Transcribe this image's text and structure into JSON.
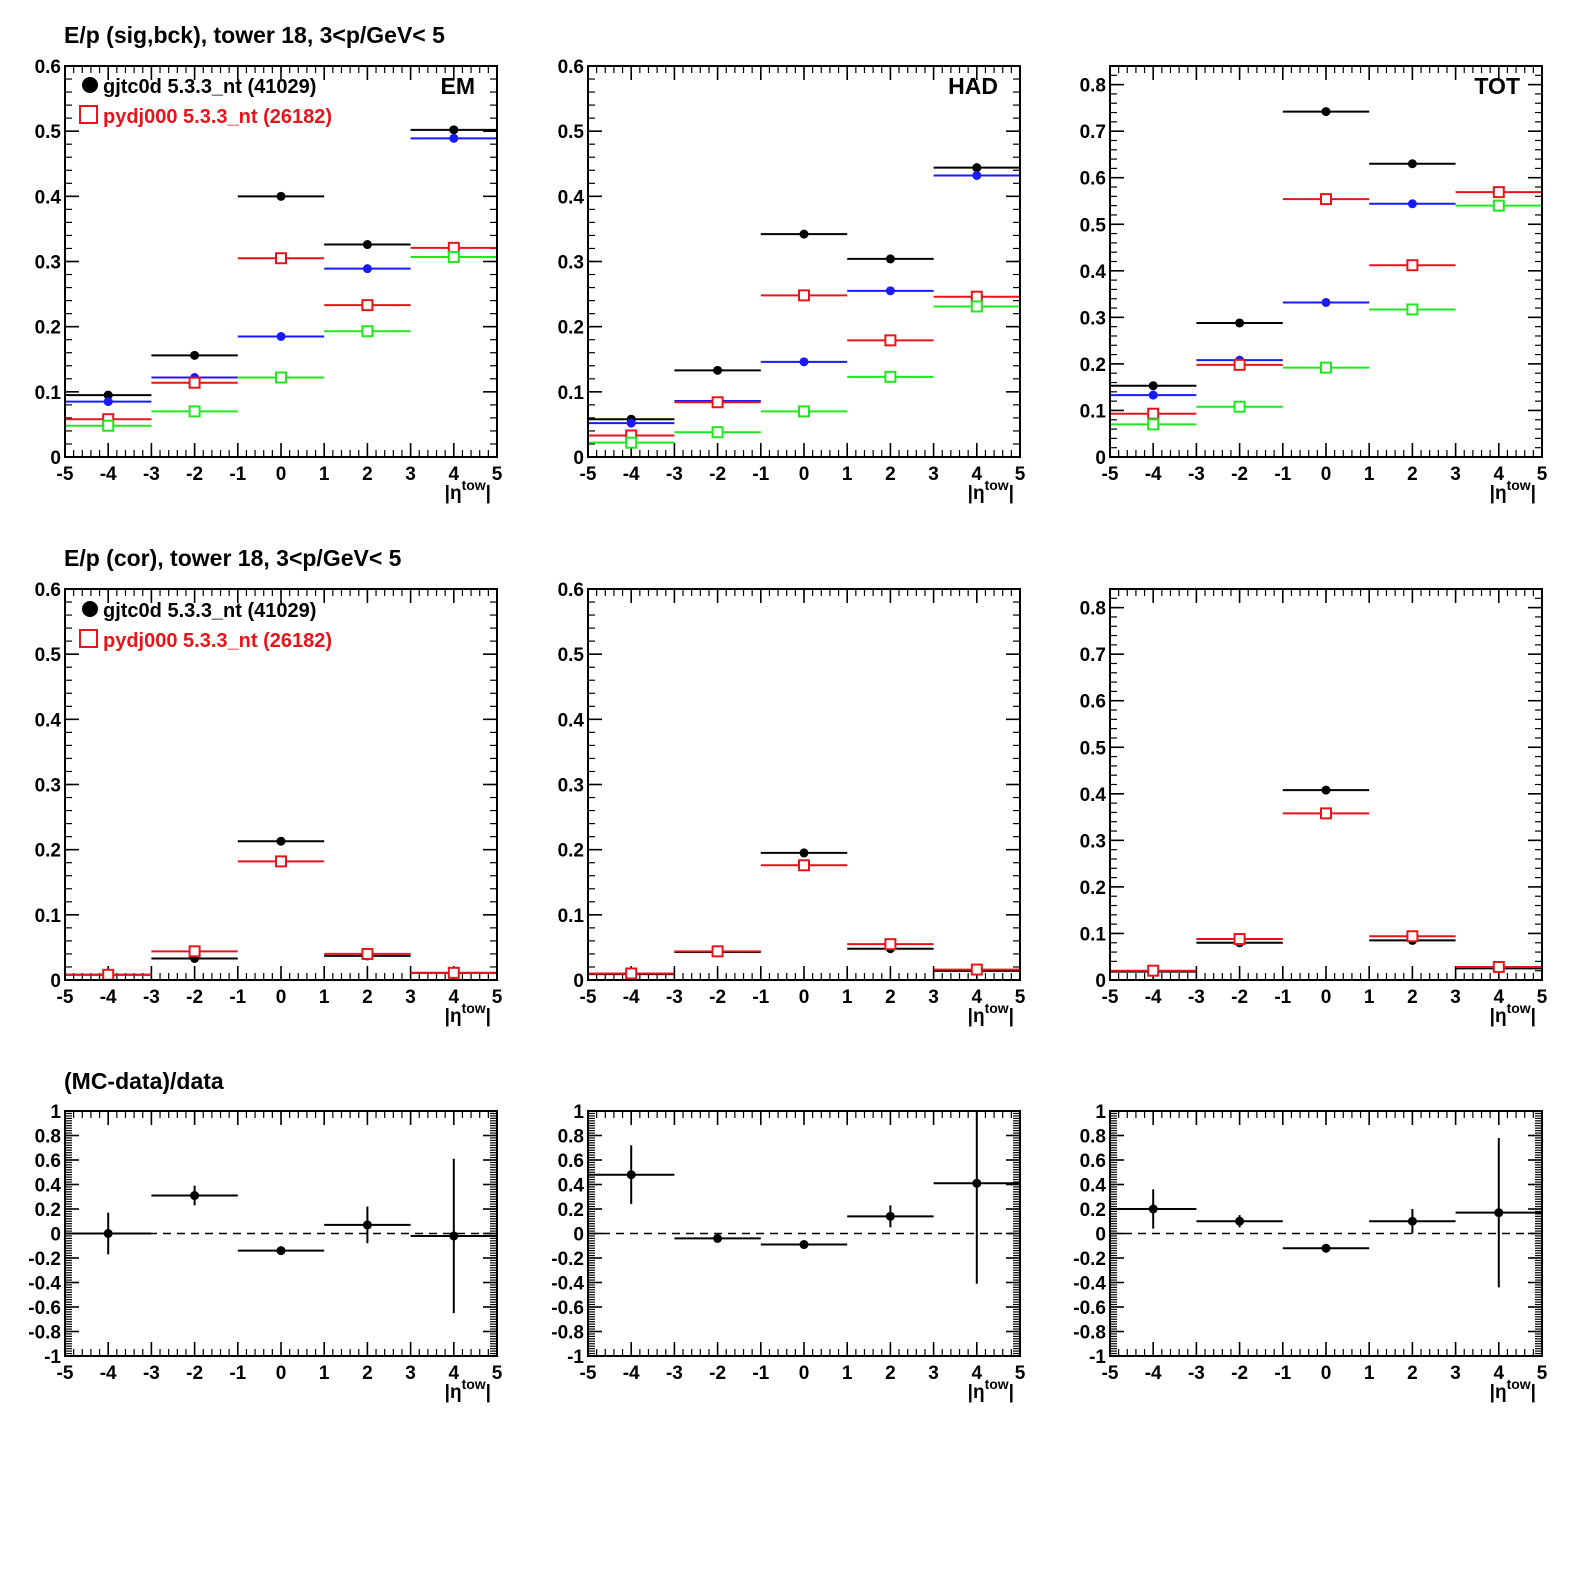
{
  "colors": {
    "black": "#000000",
    "red": "#e8141b",
    "blue": "#1a1aff",
    "green": "#1fe81f"
  },
  "headings": [
    "E/p (sig,bck), tower 18,  3<p/GeV< 5",
    "E/p (cor), tower 18,  3<p/GeV< 5",
    "(MC-data)/data"
  ],
  "legend": {
    "data_label": "gjtc0d 5.3.3_nt (41029)",
    "mc_label": "pydj000 5.3.3_nt (26182)"
  },
  "chart_data": [
    {
      "name": "row1-EM",
      "type": "scatter",
      "panel_label": "EM",
      "xlabel": "|η^tow|",
      "xlim": [
        -5,
        5
      ],
      "ylim": [
        0,
        0.6
      ],
      "xticks": [
        "-5",
        "-4",
        "-3",
        "-2",
        "-1",
        "0",
        "1",
        "2",
        "3",
        "4",
        "5"
      ],
      "yticks": [
        "0",
        "0.1",
        "0.2",
        "0.3",
        "0.4",
        "0.5",
        "0.6"
      ],
      "x": [
        -4,
        -2,
        0,
        2,
        4
      ],
      "xerr": 1,
      "series": [
        {
          "color": "black",
          "marker": "dot",
          "values": [
            0.095,
            0.156,
            0.4,
            0.326,
            0.502
          ]
        },
        {
          "color": "blue",
          "marker": "dot",
          "values": [
            0.085,
            0.122,
            0.185,
            0.289,
            0.489
          ]
        },
        {
          "color": "red",
          "marker": "square",
          "values": [
            0.058,
            0.114,
            0.305,
            0.233,
            0.321
          ]
        },
        {
          "color": "green",
          "marker": "square",
          "values": [
            0.048,
            0.07,
            0.122,
            0.193,
            0.307
          ]
        }
      ]
    },
    {
      "name": "row1-HAD",
      "type": "scatter",
      "panel_label": "HAD",
      "xlabel": "|η^tow|",
      "xlim": [
        -5,
        5
      ],
      "ylim": [
        0,
        0.6
      ],
      "xticks": [
        "-5",
        "-4",
        "-3",
        "-2",
        "-1",
        "0",
        "1",
        "2",
        "3",
        "4",
        "5"
      ],
      "yticks": [
        "0",
        "0.1",
        "0.2",
        "0.3",
        "0.4",
        "0.5",
        "0.6"
      ],
      "x": [
        -4,
        -2,
        0,
        2,
        4
      ],
      "xerr": 1,
      "series": [
        {
          "color": "black",
          "marker": "dot",
          "values": [
            0.058,
            0.133,
            0.342,
            0.304,
            0.444
          ]
        },
        {
          "color": "blue",
          "marker": "dot",
          "values": [
            0.052,
            0.086,
            0.146,
            0.255,
            0.432
          ]
        },
        {
          "color": "red",
          "marker": "square",
          "values": [
            0.033,
            0.084,
            0.248,
            0.179,
            0.246
          ]
        },
        {
          "color": "green",
          "marker": "square",
          "values": [
            0.022,
            0.038,
            0.07,
            0.123,
            0.231
          ]
        }
      ]
    },
    {
      "name": "row1-TOT",
      "type": "scatter",
      "panel_label": "TOT",
      "xlabel": "|η^tow|",
      "xlim": [
        -5,
        5
      ],
      "ylim": [
        0,
        0.84
      ],
      "xticks": [
        "-5",
        "-4",
        "-3",
        "-2",
        "-1",
        "0",
        "1",
        "2",
        "3",
        "4",
        "5"
      ],
      "yticks": [
        "0",
        "0.1",
        "0.2",
        "0.3",
        "0.4",
        "0.5",
        "0.6",
        "0.7",
        "0.8"
      ],
      "x": [
        -4,
        -2,
        0,
        2,
        4
      ],
      "xerr": 1,
      "series": [
        {
          "color": "black",
          "marker": "dot",
          "values": [
            0.153,
            0.288,
            0.742,
            0.63,
            null
          ]
        },
        {
          "color": "blue",
          "marker": "dot",
          "values": [
            0.133,
            0.208,
            0.332,
            0.544,
            null
          ]
        },
        {
          "color": "red",
          "marker": "square",
          "values": [
            0.093,
            0.198,
            0.554,
            0.412,
            0.569
          ]
        },
        {
          "color": "green",
          "marker": "square",
          "values": [
            0.07,
            0.108,
            0.192,
            0.317,
            0.54
          ]
        }
      ]
    },
    {
      "name": "row2-EM",
      "type": "scatter",
      "panel_label": "",
      "xlabel": "|η^tow|",
      "xlim": [
        -5,
        5
      ],
      "ylim": [
        0,
        0.6
      ],
      "xticks": [
        "-5",
        "-4",
        "-3",
        "-2",
        "-1",
        "0",
        "1",
        "2",
        "3",
        "4",
        "5"
      ],
      "yticks": [
        "0",
        "0.1",
        "0.2",
        "0.3",
        "0.4",
        "0.5",
        "0.6"
      ],
      "x": [
        -4,
        -2,
        0,
        2,
        4
      ],
      "xerr": 1,
      "series": [
        {
          "color": "black",
          "marker": "dot",
          "values": [
            0.008,
            0.033,
            0.213,
            0.037,
            0.011
          ]
        },
        {
          "color": "red",
          "marker": "square",
          "values": [
            0.008,
            0.044,
            0.182,
            0.04,
            0.011
          ]
        }
      ]
    },
    {
      "name": "row2-HAD",
      "type": "scatter",
      "panel_label": "",
      "xlabel": "|η^tow|",
      "xlim": [
        -5,
        5
      ],
      "ylim": [
        0,
        0.6
      ],
      "xticks": [
        "-5",
        "-4",
        "-3",
        "-2",
        "-1",
        "0",
        "1",
        "2",
        "3",
        "4",
        "5"
      ],
      "yticks": [
        "0",
        "0.1",
        "0.2",
        "0.3",
        "0.4",
        "0.5",
        "0.6"
      ],
      "x": [
        -4,
        -2,
        0,
        2,
        4
      ],
      "xerr": 1,
      "series": [
        {
          "color": "black",
          "marker": "dot",
          "values": [
            0.009,
            0.043,
            0.195,
            0.048,
            0.014
          ]
        },
        {
          "color": "red",
          "marker": "square",
          "values": [
            0.01,
            0.044,
            0.176,
            0.055,
            0.016
          ]
        }
      ]
    },
    {
      "name": "row2-TOT",
      "type": "scatter",
      "panel_label": "",
      "xlabel": "|η^tow|",
      "xlim": [
        -5,
        5
      ],
      "ylim": [
        0,
        0.84
      ],
      "xticks": [
        "-5",
        "-4",
        "-3",
        "-2",
        "-1",
        "0",
        "1",
        "2",
        "3",
        "4",
        "5"
      ],
      "yticks": [
        "0",
        "0.1",
        "0.2",
        "0.3",
        "0.4",
        "0.5",
        "0.6",
        "0.7",
        "0.8"
      ],
      "x": [
        -4,
        -2,
        0,
        2,
        4
      ],
      "xerr": 1,
      "series": [
        {
          "color": "black",
          "marker": "dot",
          "values": [
            0.018,
            0.08,
            0.408,
            0.085,
            0.025
          ]
        },
        {
          "color": "red",
          "marker": "square",
          "values": [
            0.02,
            0.088,
            0.358,
            0.094,
            0.028
          ]
        }
      ]
    },
    {
      "name": "row3-EM",
      "type": "scatter",
      "panel_label": "",
      "xlabel": "|η^tow|",
      "xlim": [
        -5,
        5
      ],
      "ylim": [
        -1,
        1
      ],
      "xticks": [
        "-5",
        "-4",
        "-3",
        "-2",
        "-1",
        "0",
        "1",
        "2",
        "3",
        "4",
        "5"
      ],
      "yticks": [
        "-1",
        "-0.8",
        "-0.6",
        "-0.4",
        "-0.2",
        "0",
        "0.2",
        "0.4",
        "0.6",
        "0.8",
        "1"
      ],
      "reference_line": 0,
      "x": [
        -4,
        -2,
        0,
        2,
        4
      ],
      "xerr": 1,
      "series": [
        {
          "color": "black",
          "marker": "dot",
          "values": [
            0.0,
            0.31,
            -0.14,
            0.07,
            -0.02
          ],
          "yerr": [
            0.17,
            0.08,
            0.01,
            0.15,
            0.63
          ]
        }
      ]
    },
    {
      "name": "row3-HAD",
      "type": "scatter",
      "panel_label": "",
      "xlabel": "|η^tow|",
      "xlim": [
        -5,
        5
      ],
      "ylim": [
        -1,
        1
      ],
      "xticks": [
        "-5",
        "-4",
        "-3",
        "-2",
        "-1",
        "0",
        "1",
        "2",
        "3",
        "4",
        "5"
      ],
      "yticks": [
        "-1",
        "-0.8",
        "-0.6",
        "-0.4",
        "-0.2",
        "0",
        "0.2",
        "0.4",
        "0.6",
        "0.8",
        "1"
      ],
      "reference_line": 0,
      "x": [
        -4,
        -2,
        0,
        2,
        4
      ],
      "xerr": 1,
      "series": [
        {
          "color": "black",
          "marker": "dot",
          "values": [
            0.48,
            -0.04,
            -0.09,
            0.14,
            0.41
          ],
          "yerr": [
            0.24,
            0.02,
            0.01,
            0.09,
            0.82
          ]
        }
      ]
    },
    {
      "name": "row3-TOT",
      "type": "scatter",
      "panel_label": "",
      "xlabel": "|η^tow|",
      "xlim": [
        -5,
        5
      ],
      "ylim": [
        -1,
        1
      ],
      "xticks": [
        "-5",
        "-4",
        "-3",
        "-2",
        "-1",
        "0",
        "1",
        "2",
        "3",
        "4",
        "5"
      ],
      "yticks": [
        "-1",
        "-0.8",
        "-0.6",
        "-0.4",
        "-0.2",
        "0",
        "0.2",
        "0.4",
        "0.6",
        "0.8",
        "1"
      ],
      "reference_line": 0,
      "x": [
        -4,
        -2,
        0,
        2,
        4
      ],
      "xerr": 1,
      "series": [
        {
          "color": "black",
          "marker": "dot",
          "values": [
            0.2,
            0.1,
            -0.12,
            0.1,
            0.17
          ],
          "yerr": [
            0.16,
            0.05,
            0.02,
            0.1,
            0.61
          ]
        }
      ]
    }
  ]
}
